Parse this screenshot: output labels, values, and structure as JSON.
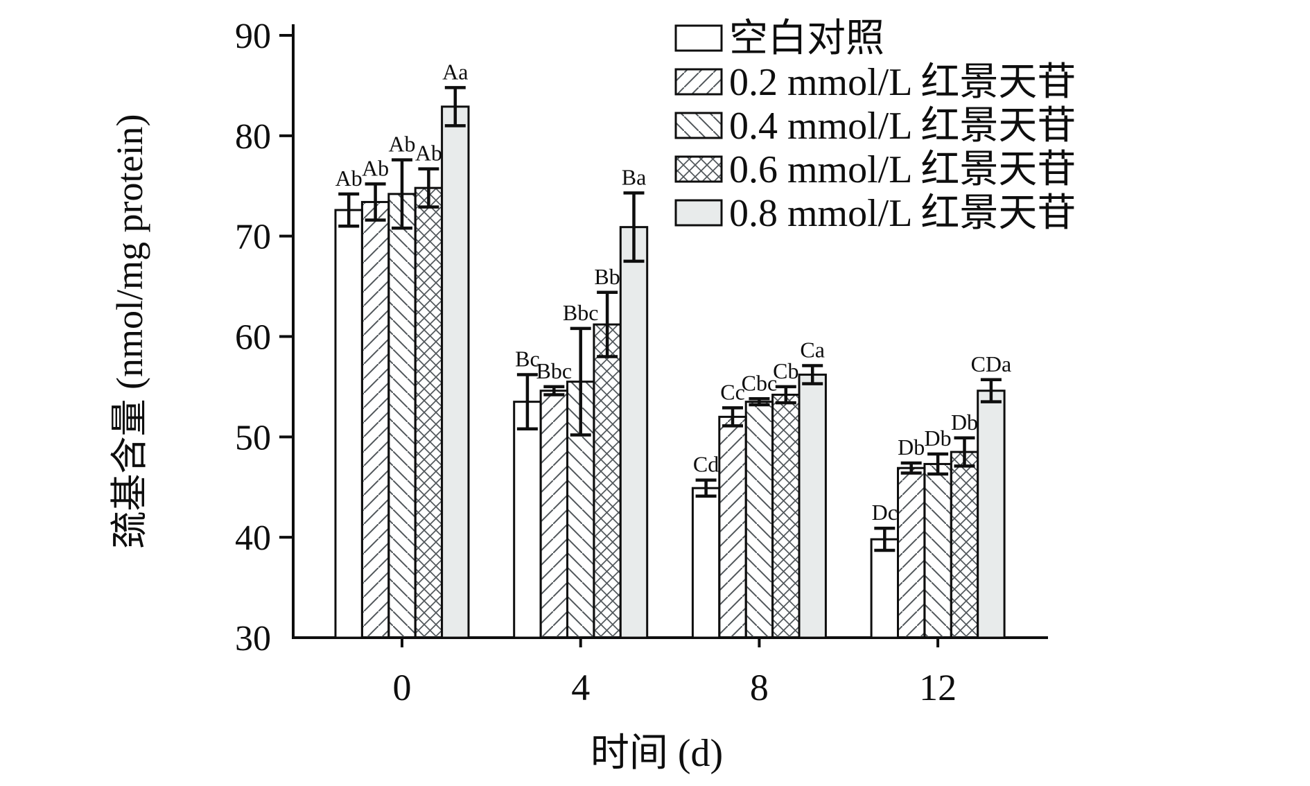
{
  "figure": {
    "background": "#ffffff",
    "y_axis": {
      "title": "巯基含量 (nmol/mg protein)",
      "ticks": [
        30,
        40,
        50,
        60,
        70,
        80,
        90
      ]
    },
    "x_axis": {
      "title": "时间 (d)",
      "tick_labels": [
        "0",
        "4",
        "8",
        "12"
      ]
    },
    "legend": {
      "position": "top-right",
      "items": [
        {
          "label": "空白对照",
          "pattern": "none"
        },
        {
          "label": "0.2 mmol/L 红景天苷",
          "pattern": "diag-fwd"
        },
        {
          "label": "0.4 mmol/L 红景天苷",
          "pattern": "diag-bwd"
        },
        {
          "label": "0.6 mmol/L 红景天苷",
          "pattern": "cross"
        },
        {
          "label": "0.8 mmol/L 红景天苷",
          "pattern": "solid-gray"
        }
      ]
    },
    "colors": {
      "bar_gray_fill": "#e8ebeb",
      "outline": "#0e0e0e",
      "hatch_line": "#50565a"
    }
  },
  "chart_data": {
    "type": "bar",
    "title": "",
    "xlabel": "时间 (d)",
    "ylabel": "巯基含量 (nmol/mg protein)",
    "ylim": [
      30,
      90
    ],
    "grid": false,
    "legend_position": "top-right",
    "categories": [
      0,
      4,
      8,
      12
    ],
    "series": [
      {
        "name": "空白对照",
        "pattern": "none",
        "values": [
          72.6,
          53.5,
          44.9,
          39.8
        ],
        "errors": [
          1.6,
          2.7,
          0.8,
          1.1
        ],
        "sig_labels": [
          "Ab",
          "Bc",
          "Cd",
          "Dc"
        ]
      },
      {
        "name": "0.2 mmol/L 红景天苷",
        "pattern": "diag-fwd",
        "values": [
          73.4,
          54.6,
          52.0,
          46.9
        ],
        "errors": [
          1.8,
          0.4,
          0.9,
          0.5
        ],
        "sig_labels": [
          "Ab",
          "Bbc",
          "Cc",
          "Db"
        ]
      },
      {
        "name": "0.4 mmol/L 红景天苷",
        "pattern": "diag-bwd",
        "values": [
          74.2,
          55.5,
          53.5,
          47.3
        ],
        "errors": [
          3.4,
          5.3,
          0.3,
          1.0
        ],
        "sig_labels": [
          "Ab",
          "Bbc",
          "Cbc",
          "Db"
        ]
      },
      {
        "name": "0.6 mmol/L 红景天苷",
        "pattern": "cross",
        "values": [
          74.8,
          61.2,
          54.2,
          48.5
        ],
        "errors": [
          1.9,
          3.2,
          0.8,
          1.4
        ],
        "sig_labels": [
          "Ab",
          "Bb",
          "Cb",
          "Db"
        ]
      },
      {
        "name": "0.8 mmol/L 红景天苷",
        "pattern": "solid-gray",
        "values": [
          82.9,
          70.9,
          56.2,
          54.6
        ],
        "errors": [
          1.9,
          3.4,
          0.9,
          1.1
        ],
        "sig_labels": [
          "Aa",
          "Ba",
          "Ca",
          "CDa"
        ]
      }
    ]
  }
}
